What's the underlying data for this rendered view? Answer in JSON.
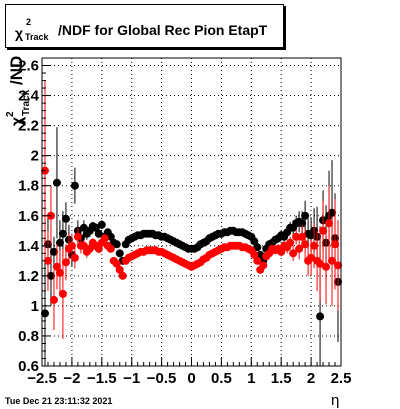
{
  "chart_data": {
    "type": "scatter",
    "title": {
      "symbol": "χ",
      "sup": "2",
      "sub": "Track",
      "text": "/NDF for Global Rec Pion EtapT"
    },
    "xlabel": "η",
    "ylabel": {
      "symbol": "χ",
      "sup": "2",
      "sub": "Track",
      "text": "/ND"
    },
    "xlim": [
      -2.5,
      2.5
    ],
    "ylim": [
      0.6,
      2.65
    ],
    "x_ticks": [
      -2.5,
      -2,
      -1.5,
      -1,
      -0.5,
      0,
      0.5,
      1,
      1.5,
      2,
      2.5
    ],
    "x_tick_labels": [
      "−2.5",
      "−2",
      "−1.5",
      "−1",
      "−0.5",
      "0",
      "0.5",
      "1",
      "1.5",
      "2",
      "2.5"
    ],
    "y_ticks": [
      0.6,
      0.8,
      1,
      1.2,
      1.4,
      1.6,
      1.8,
      2,
      2.2,
      2.4,
      2.6
    ],
    "y_tick_labels": [
      "0.6",
      "0.8",
      "1",
      "1.2",
      "1.4",
      "1.6",
      "1.8",
      "2",
      "2.2",
      "2.4",
      "2.6"
    ],
    "grid": true,
    "series": [
      {
        "color": "#000000",
        "points": [
          [
            -2.45,
            0.95,
            0.5
          ],
          [
            -2.4,
            1.41,
            0.2
          ],
          [
            -2.35,
            1.2,
            0.2
          ],
          [
            -2.3,
            1.36,
            0.1
          ],
          [
            -2.25,
            1.82,
            0.37
          ],
          [
            -2.2,
            1.42,
            0.15
          ],
          [
            -2.15,
            1.48,
            0.15
          ],
          [
            -2.1,
            1.58,
            0.11
          ],
          [
            -2.05,
            1.44,
            0.1
          ],
          [
            -2.0,
            1.34,
            0.08
          ],
          [
            -1.95,
            1.8,
            0.12
          ],
          [
            -1.9,
            1.5,
            0.07
          ],
          [
            -1.85,
            1.45,
            0.06
          ],
          [
            -1.8,
            1.52,
            0.05
          ],
          [
            -1.75,
            1.48,
            0.04
          ],
          [
            -1.7,
            1.5,
            0.04
          ],
          [
            -1.65,
            1.53,
            0.03
          ],
          [
            -1.6,
            1.52,
            0.03
          ],
          [
            -1.55,
            1.48,
            0.03
          ],
          [
            -1.5,
            1.54,
            0.03
          ],
          [
            -1.45,
            1.46,
            0.02
          ],
          [
            -1.4,
            1.49,
            0.02
          ],
          [
            -1.35,
            1.46,
            0.02
          ],
          [
            -1.3,
            1.42,
            0.02
          ],
          [
            -1.25,
            1.41,
            0.02
          ],
          [
            -1.2,
            1.35,
            0.02
          ],
          [
            -1.15,
            1.3,
            0.02
          ],
          [
            -1.1,
            1.41,
            0.02
          ],
          [
            -1.05,
            1.44,
            0.01
          ],
          [
            -1.0,
            1.45,
            0.01
          ],
          [
            -0.95,
            1.46,
            0.01
          ],
          [
            -0.9,
            1.47,
            0.01
          ],
          [
            -0.85,
            1.47,
            0.01
          ],
          [
            -0.8,
            1.48,
            0.01
          ],
          [
            -0.75,
            1.48,
            0.01
          ],
          [
            -0.7,
            1.48,
            0.01
          ],
          [
            -0.65,
            1.48,
            0.01
          ],
          [
            -0.6,
            1.47,
            0.01
          ],
          [
            -0.55,
            1.47,
            0.01
          ],
          [
            -0.5,
            1.46,
            0.01
          ],
          [
            -0.45,
            1.46,
            0.01
          ],
          [
            -0.4,
            1.45,
            0.01
          ],
          [
            -0.35,
            1.44,
            0.01
          ],
          [
            -0.3,
            1.43,
            0.01
          ],
          [
            -0.25,
            1.42,
            0.01
          ],
          [
            -0.2,
            1.41,
            0.01
          ],
          [
            -0.15,
            1.4,
            0.01
          ],
          [
            -0.1,
            1.39,
            0.01
          ],
          [
            -0.05,
            1.38,
            0.01
          ],
          [
            0.0,
            1.38,
            0.01
          ],
          [
            0.05,
            1.38,
            0.01
          ],
          [
            0.1,
            1.39,
            0.01
          ],
          [
            0.15,
            1.41,
            0.01
          ],
          [
            0.2,
            1.42,
            0.01
          ],
          [
            0.25,
            1.43,
            0.01
          ],
          [
            0.3,
            1.45,
            0.01
          ],
          [
            0.35,
            1.46,
            0.01
          ],
          [
            0.4,
            1.47,
            0.01
          ],
          [
            0.45,
            1.48,
            0.01
          ],
          [
            0.5,
            1.48,
            0.01
          ],
          [
            0.55,
            1.49,
            0.01
          ],
          [
            0.6,
            1.49,
            0.01
          ],
          [
            0.65,
            1.5,
            0.01
          ],
          [
            0.7,
            1.5,
            0.01
          ],
          [
            0.75,
            1.49,
            0.01
          ],
          [
            0.8,
            1.49,
            0.01
          ],
          [
            0.85,
            1.49,
            0.01
          ],
          [
            0.9,
            1.48,
            0.01
          ],
          [
            0.95,
            1.47,
            0.01
          ],
          [
            1.0,
            1.46,
            0.01
          ],
          [
            1.05,
            1.43,
            0.01
          ],
          [
            1.1,
            1.39,
            0.02
          ],
          [
            1.15,
            1.34,
            0.02
          ],
          [
            1.2,
            1.3,
            0.02
          ],
          [
            1.25,
            1.38,
            0.02
          ],
          [
            1.3,
            1.41,
            0.02
          ],
          [
            1.35,
            1.42,
            0.02
          ],
          [
            1.4,
            1.44,
            0.02
          ],
          [
            1.45,
            1.45,
            0.03
          ],
          [
            1.5,
            1.47,
            0.03
          ],
          [
            1.55,
            1.46,
            0.03
          ],
          [
            1.6,
            1.49,
            0.04
          ],
          [
            1.65,
            1.52,
            0.04
          ],
          [
            1.7,
            1.52,
            0.05
          ],
          [
            1.75,
            1.55,
            0.05
          ],
          [
            1.8,
            1.56,
            0.07
          ],
          [
            1.85,
            1.55,
            0.08
          ],
          [
            1.9,
            1.6,
            0.1
          ],
          [
            1.95,
            1.48,
            0.1
          ],
          [
            2.0,
            1.47,
            0.12
          ],
          [
            2.05,
            1.5,
            0.15
          ],
          [
            2.1,
            1.46,
            0.2
          ],
          [
            2.15,
            0.93,
            0.6
          ],
          [
            2.2,
            1.57,
            0.2
          ],
          [
            2.25,
            1.42,
            0.25
          ],
          [
            2.3,
            1.6,
            0.3
          ],
          [
            2.35,
            1.62,
            0.35
          ],
          [
            2.4,
            1.45,
            0.3
          ],
          [
            2.45,
            1.16,
            0.4
          ]
        ]
      },
      {
        "color": "#ff0000",
        "points": [
          [
            -2.45,
            1.9,
            0.6
          ],
          [
            -2.4,
            1.3,
            0.2
          ],
          [
            -2.35,
            1.6,
            0.2
          ],
          [
            -2.3,
            1.04,
            0.2
          ],
          [
            -2.25,
            1.26,
            0.15
          ],
          [
            -2.2,
            1.22,
            0.15
          ],
          [
            -2.15,
            1.08,
            0.3
          ],
          [
            -2.1,
            1.29,
            0.12
          ],
          [
            -2.05,
            1.38,
            0.1
          ],
          [
            -2.0,
            1.4,
            0.08
          ],
          [
            -1.95,
            1.32,
            0.07
          ],
          [
            -1.9,
            1.46,
            0.06
          ],
          [
            -1.85,
            1.4,
            0.05
          ],
          [
            -1.8,
            1.4,
            0.04
          ],
          [
            -1.75,
            1.36,
            0.04
          ],
          [
            -1.7,
            1.38,
            0.03
          ],
          [
            -1.65,
            1.42,
            0.03
          ],
          [
            -1.6,
            1.4,
            0.03
          ],
          [
            -1.55,
            1.38,
            0.03
          ],
          [
            -1.5,
            1.42,
            0.02
          ],
          [
            -1.45,
            1.45,
            0.02
          ],
          [
            -1.4,
            1.4,
            0.02
          ],
          [
            -1.35,
            1.38,
            0.02
          ],
          [
            -1.3,
            1.3,
            0.02
          ],
          [
            -1.25,
            1.28,
            0.02
          ],
          [
            -1.2,
            1.24,
            0.02
          ],
          [
            -1.15,
            1.2,
            0.02
          ],
          [
            -1.1,
            1.3,
            0.02
          ],
          [
            -1.05,
            1.32,
            0.01
          ],
          [
            -1.0,
            1.33,
            0.01
          ],
          [
            -0.95,
            1.34,
            0.01
          ],
          [
            -0.9,
            1.35,
            0.01
          ],
          [
            -0.85,
            1.36,
            0.01
          ],
          [
            -0.8,
            1.36,
            0.01
          ],
          [
            -0.75,
            1.37,
            0.01
          ],
          [
            -0.7,
            1.37,
            0.01
          ],
          [
            -0.65,
            1.37,
            0.01
          ],
          [
            -0.6,
            1.37,
            0.01
          ],
          [
            -0.55,
            1.36,
            0.01
          ],
          [
            -0.5,
            1.36,
            0.01
          ],
          [
            -0.45,
            1.35,
            0.01
          ],
          [
            -0.4,
            1.34,
            0.01
          ],
          [
            -0.35,
            1.33,
            0.01
          ],
          [
            -0.3,
            1.32,
            0.01
          ],
          [
            -0.25,
            1.31,
            0.01
          ],
          [
            -0.2,
            1.3,
            0.01
          ],
          [
            -0.15,
            1.29,
            0.01
          ],
          [
            -0.1,
            1.28,
            0.01
          ],
          [
            -0.05,
            1.27,
            0.01
          ],
          [
            0.0,
            1.26,
            0.01
          ],
          [
            0.05,
            1.27,
            0.01
          ],
          [
            0.1,
            1.28,
            0.01
          ],
          [
            0.15,
            1.29,
            0.01
          ],
          [
            0.2,
            1.31,
            0.01
          ],
          [
            0.25,
            1.32,
            0.01
          ],
          [
            0.3,
            1.34,
            0.01
          ],
          [
            0.35,
            1.35,
            0.01
          ],
          [
            0.4,
            1.36,
            0.01
          ],
          [
            0.45,
            1.37,
            0.01
          ],
          [
            0.5,
            1.38,
            0.01
          ],
          [
            0.55,
            1.39,
            0.01
          ],
          [
            0.6,
            1.39,
            0.01
          ],
          [
            0.65,
            1.4,
            0.01
          ],
          [
            0.7,
            1.4,
            0.01
          ],
          [
            0.75,
            1.4,
            0.01
          ],
          [
            0.8,
            1.4,
            0.01
          ],
          [
            0.85,
            1.39,
            0.01
          ],
          [
            0.9,
            1.39,
            0.01
          ],
          [
            0.95,
            1.38,
            0.01
          ],
          [
            1.0,
            1.37,
            0.01
          ],
          [
            1.05,
            1.34,
            0.02
          ],
          [
            1.1,
            1.3,
            0.02
          ],
          [
            1.15,
            1.24,
            0.02
          ],
          [
            1.2,
            1.27,
            0.02
          ],
          [
            1.25,
            1.33,
            0.02
          ],
          [
            1.3,
            1.35,
            0.02
          ],
          [
            1.35,
            1.38,
            0.02
          ],
          [
            1.4,
            1.37,
            0.02
          ],
          [
            1.45,
            1.38,
            0.03
          ],
          [
            1.5,
            1.36,
            0.03
          ],
          [
            1.55,
            1.4,
            0.03
          ],
          [
            1.6,
            1.39,
            0.04
          ],
          [
            1.65,
            1.42,
            0.04
          ],
          [
            1.7,
            1.35,
            0.05
          ],
          [
            1.75,
            1.46,
            0.05
          ],
          [
            1.8,
            1.38,
            0.07
          ],
          [
            1.85,
            1.46,
            0.08
          ],
          [
            1.9,
            1.41,
            0.1
          ],
          [
            1.95,
            1.3,
            0.1
          ],
          [
            2.0,
            1.32,
            0.12
          ],
          [
            2.05,
            1.4,
            0.15
          ],
          [
            2.1,
            1.3,
            0.2
          ],
          [
            2.15,
            1.28,
            0.25
          ],
          [
            2.2,
            1.5,
            0.2
          ],
          [
            2.25,
            1.26,
            0.25
          ],
          [
            2.3,
            1.55,
            0.25
          ],
          [
            2.35,
            1.3,
            0.3
          ],
          [
            2.4,
            1.41,
            0.3
          ],
          [
            2.45,
            1.27,
            0.3
          ]
        ]
      }
    ]
  },
  "footer": "Tue Dec 21 23:11:32 2021"
}
